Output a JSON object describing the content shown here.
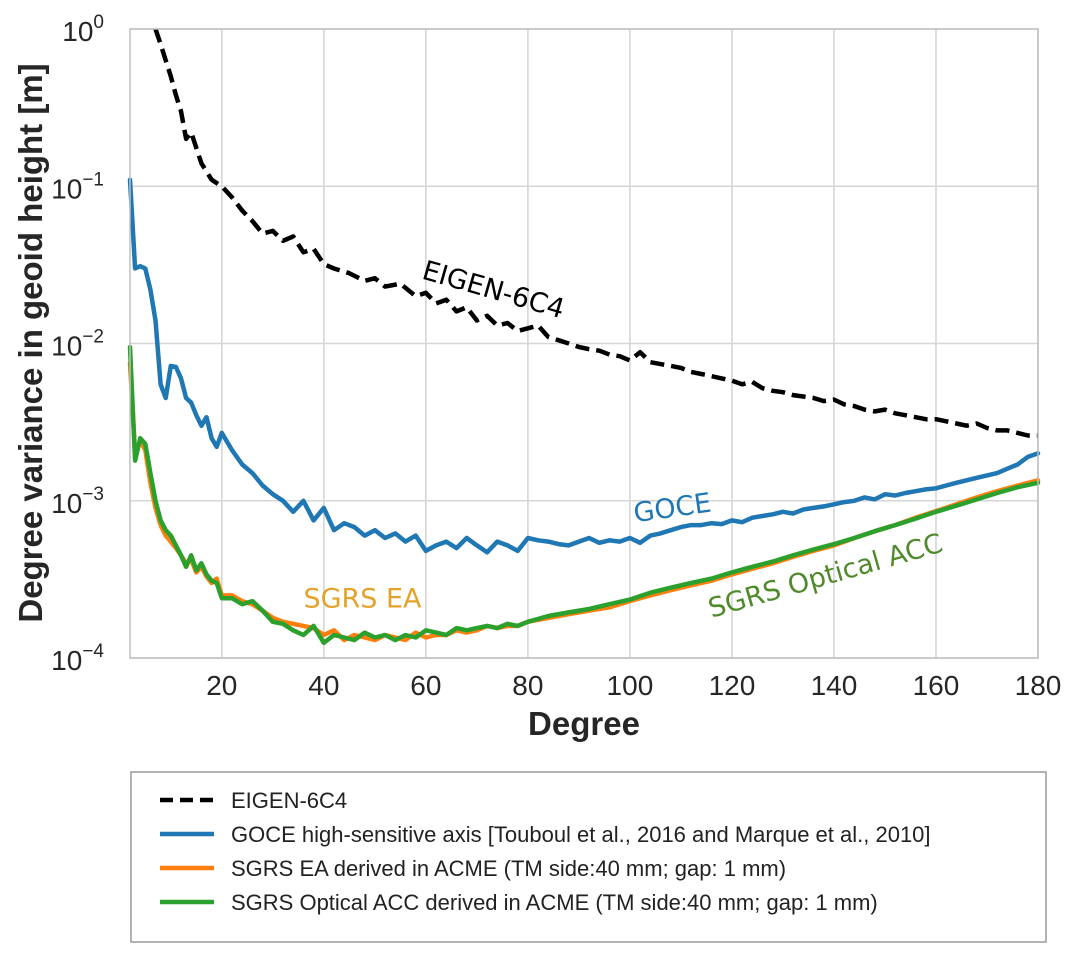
{
  "chart_data": {
    "type": "line",
    "xlabel": "Degree",
    "ylabel": "Degree variance in geoid height [m]",
    "yscale": "log",
    "xlim": [
      2,
      180
    ],
    "ylim": [
      0.0001,
      1
    ],
    "grid": true,
    "x_ticks": [
      20,
      40,
      60,
      80,
      100,
      120,
      140,
      160,
      180
    ],
    "x_tick_labels": [
      "20",
      "40",
      "60",
      "80",
      "100",
      "120",
      "140",
      "160",
      "180"
    ],
    "y_ticks": [
      {
        "value": 1,
        "base": "10",
        "exp": "0"
      },
      {
        "value": 0.1,
        "base": "10",
        "exp": "−1"
      },
      {
        "value": 0.01,
        "base": "10",
        "exp": "−2"
      },
      {
        "value": 0.001,
        "base": "10",
        "exp": "−3"
      },
      {
        "value": 0.0001,
        "base": "10",
        "exp": "−4"
      }
    ],
    "series": [
      {
        "name": "EIGEN-6C4",
        "legend": "EIGEN-6C4",
        "color": "#000000",
        "dashed": true,
        "x": [
          7,
          8,
          10,
          11,
          12,
          13,
          14,
          16,
          18,
          20,
          22,
          24,
          26,
          28,
          30,
          32,
          34,
          36,
          38,
          40,
          42,
          45,
          48,
          50,
          52,
          55,
          58,
          60,
          62,
          64,
          66,
          68,
          70,
          72,
          74,
          76,
          78,
          80,
          82,
          84,
          86,
          88,
          90,
          92,
          94,
          96,
          98,
          100,
          102,
          104,
          106,
          108,
          110,
          112,
          114,
          116,
          118,
          120,
          122,
          124,
          126,
          128,
          130,
          132,
          134,
          136,
          138,
          140,
          142,
          144,
          146,
          148,
          150,
          152,
          154,
          156,
          158,
          160,
          162,
          164,
          166,
          168,
          170,
          172,
          174,
          176,
          178,
          180
        ],
        "y": [
          1.0,
          0.8,
          0.5,
          0.38,
          0.3,
          0.2,
          0.22,
          0.14,
          0.11,
          0.1,
          0.085,
          0.07,
          0.06,
          0.05,
          0.052,
          0.045,
          0.048,
          0.038,
          0.04,
          0.032,
          0.03,
          0.028,
          0.025,
          0.026,
          0.023,
          0.024,
          0.02,
          0.021,
          0.018,
          0.019,
          0.016,
          0.017,
          0.014,
          0.015,
          0.013,
          0.0135,
          0.012,
          0.0125,
          0.013,
          0.011,
          0.0105,
          0.01,
          0.0095,
          0.0092,
          0.009,
          0.0085,
          0.0083,
          0.0078,
          0.0088,
          0.0076,
          0.0074,
          0.0072,
          0.007,
          0.0066,
          0.0064,
          0.0062,
          0.006,
          0.0058,
          0.0055,
          0.0057,
          0.0052,
          0.005,
          0.0049,
          0.0047,
          0.0046,
          0.0045,
          0.0043,
          0.0044,
          0.0041,
          0.004,
          0.0038,
          0.0037,
          0.0038,
          0.0036,
          0.0035,
          0.0034,
          0.0033,
          0.0033,
          0.0032,
          0.0031,
          0.003,
          0.0031,
          0.0029,
          0.0028,
          0.0028,
          0.0027,
          0.0026,
          0.0026
        ]
      },
      {
        "name": "GOCE",
        "legend": "GOCE high-sensitive axis [Touboul et al., 2016 and Marque et al., 2010]",
        "color": "#1f77b4",
        "dashed": false,
        "x": [
          2,
          3,
          4,
          5,
          6,
          7,
          8,
          9,
          10,
          11,
          12,
          13,
          14,
          15,
          16,
          17,
          18,
          19,
          20,
          22,
          24,
          26,
          28,
          30,
          32,
          34,
          36,
          38,
          40,
          42,
          44,
          46,
          48,
          50,
          52,
          54,
          56,
          58,
          60,
          62,
          64,
          66,
          68,
          70,
          72,
          74,
          76,
          78,
          80,
          82,
          84,
          86,
          88,
          90,
          92,
          94,
          96,
          98,
          100,
          102,
          104,
          106,
          108,
          110,
          112,
          114,
          116,
          118,
          120,
          122,
          124,
          126,
          128,
          130,
          132,
          134,
          136,
          138,
          140,
          142,
          144,
          146,
          148,
          150,
          152,
          154,
          156,
          158,
          160,
          162,
          164,
          166,
          168,
          170,
          172,
          174,
          176,
          178,
          180
        ],
        "y": [
          0.11,
          0.03,
          0.031,
          0.03,
          0.022,
          0.014,
          0.0055,
          0.0045,
          0.0072,
          0.0071,
          0.006,
          0.0045,
          0.0042,
          0.0035,
          0.003,
          0.0034,
          0.0025,
          0.0022,
          0.0027,
          0.0021,
          0.0017,
          0.0015,
          0.00125,
          0.0011,
          0.001,
          0.00085,
          0.001,
          0.00075,
          0.0009,
          0.00065,
          0.00072,
          0.00068,
          0.0006,
          0.00065,
          0.00058,
          0.00062,
          0.00055,
          0.0006,
          0.00048,
          0.00052,
          0.00055,
          0.0005,
          0.00058,
          0.00052,
          0.00047,
          0.00055,
          0.00052,
          0.00048,
          0.00058,
          0.00056,
          0.00055,
          0.00053,
          0.00052,
          0.00055,
          0.00058,
          0.00054,
          0.00056,
          0.00055,
          0.00058,
          0.00054,
          0.0006,
          0.00062,
          0.00065,
          0.00068,
          0.0007,
          0.0007,
          0.00072,
          0.00071,
          0.00075,
          0.00073,
          0.00078,
          0.0008,
          0.00082,
          0.00085,
          0.00083,
          0.00088,
          0.0009,
          0.00092,
          0.00095,
          0.00098,
          0.001,
          0.00105,
          0.00102,
          0.0011,
          0.00108,
          0.00112,
          0.00115,
          0.00118,
          0.0012,
          0.00125,
          0.0013,
          0.00135,
          0.0014,
          0.00145,
          0.0015,
          0.0016,
          0.0017,
          0.0019,
          0.002
        ]
      },
      {
        "name": "SGRS EA",
        "legend": "SGRS EA derived in ACME (TM side:40 mm; gap: 1 mm)",
        "color": "#ff7f0e",
        "dashed": false,
        "x": [
          2,
          3,
          4,
          5,
          6,
          7,
          8,
          9,
          10,
          11,
          12,
          13,
          14,
          15,
          16,
          17,
          18,
          19,
          20,
          22,
          24,
          26,
          28,
          30,
          32,
          34,
          36,
          38,
          40,
          42,
          44,
          46,
          48,
          50,
          52,
          54,
          56,
          58,
          60,
          62,
          64,
          66,
          68,
          70,
          72,
          74,
          76,
          78,
          80,
          84,
          88,
          92,
          96,
          100,
          104,
          108,
          112,
          116,
          120,
          124,
          128,
          132,
          136,
          140,
          144,
          148,
          152,
          156,
          160,
          164,
          168,
          172,
          176,
          180
        ],
        "y": [
          0.0075,
          0.002,
          0.0024,
          0.0021,
          0.0013,
          0.0009,
          0.0007,
          0.0006,
          0.00055,
          0.0005,
          0.00045,
          0.0004,
          0.00042,
          0.00035,
          0.00038,
          0.00033,
          0.0003,
          0.00032,
          0.00025,
          0.00025,
          0.00023,
          0.00022,
          0.0002,
          0.00018,
          0.00017,
          0.000165,
          0.00016,
          0.000155,
          0.00014,
          0.00015,
          0.00013,
          0.00014,
          0.000135,
          0.00013,
          0.00014,
          0.000135,
          0.00013,
          0.000145,
          0.000135,
          0.00014,
          0.00014,
          0.00015,
          0.000145,
          0.00015,
          0.00016,
          0.000155,
          0.00016,
          0.00016,
          0.00017,
          0.00018,
          0.00019,
          0.0002,
          0.00021,
          0.00023,
          0.00025,
          0.00027,
          0.00029,
          0.00031,
          0.00034,
          0.00037,
          0.0004,
          0.00044,
          0.00048,
          0.00052,
          0.00058,
          0.00064,
          0.0007,
          0.00078,
          0.00086,
          0.00095,
          0.00105,
          0.00115,
          0.00125,
          0.00135
        ]
      },
      {
        "name": "SGRS Optical ACC",
        "legend": "SGRS Optical ACC derived in ACME (TM side:40 mm; gap: 1 mm)",
        "color": "#2ca02c",
        "dashed": false,
        "x": [
          2,
          3,
          4,
          5,
          6,
          7,
          8,
          9,
          10,
          11,
          12,
          13,
          14,
          15,
          16,
          17,
          18,
          19,
          20,
          22,
          24,
          26,
          28,
          30,
          32,
          34,
          36,
          38,
          40,
          42,
          44,
          46,
          48,
          50,
          52,
          54,
          56,
          58,
          60,
          62,
          64,
          66,
          68,
          70,
          72,
          74,
          76,
          78,
          80,
          84,
          88,
          92,
          96,
          100,
          104,
          108,
          112,
          116,
          120,
          124,
          128,
          132,
          136,
          140,
          144,
          148,
          152,
          156,
          160,
          164,
          168,
          172,
          176,
          180
        ],
        "y": [
          0.0095,
          0.0018,
          0.0025,
          0.0023,
          0.0015,
          0.001,
          0.00075,
          0.00065,
          0.0006,
          0.00052,
          0.00045,
          0.00038,
          0.00045,
          0.00036,
          0.0004,
          0.00034,
          0.00031,
          0.0003,
          0.00024,
          0.00024,
          0.00022,
          0.00023,
          0.0002,
          0.00017,
          0.000165,
          0.00015,
          0.00014,
          0.00016,
          0.000125,
          0.00014,
          0.000135,
          0.00013,
          0.000145,
          0.000135,
          0.00014,
          0.00013,
          0.00014,
          0.000135,
          0.00015,
          0.000145,
          0.00014,
          0.000155,
          0.00015,
          0.000155,
          0.00016,
          0.000155,
          0.000165,
          0.00016,
          0.00017,
          0.000185,
          0.000195,
          0.000205,
          0.00022,
          0.000235,
          0.00026,
          0.00028,
          0.0003,
          0.00032,
          0.00035,
          0.00038,
          0.00041,
          0.00045,
          0.00049,
          0.00053,
          0.00058,
          0.00064,
          0.0007,
          0.00077,
          0.00085,
          0.00093,
          0.00102,
          0.00112,
          0.00122,
          0.0013
        ]
      }
    ],
    "annotations": [
      {
        "text": "EIGEN-6C4",
        "series": "EIGEN-6C4",
        "x": 59,
        "y": 0.026,
        "rotation": 16,
        "color": "#000000"
      },
      {
        "text": "GOCE",
        "series": "GOCE",
        "x": 101,
        "y": 0.00073,
        "rotation": -8,
        "color": "#1f77b4"
      },
      {
        "text": "SGRS EA",
        "series": "SGRS EA",
        "x": 36,
        "y": 0.00021,
        "rotation": 0,
        "color": "#e5a22b"
      },
      {
        "text": "SGRS Optical ACC",
        "series": "SGRS Optical ACC",
        "x": 116,
        "y": 0.00018,
        "rotation": -16,
        "color": "#4f8a2b"
      }
    ],
    "legend_position": "below"
  }
}
